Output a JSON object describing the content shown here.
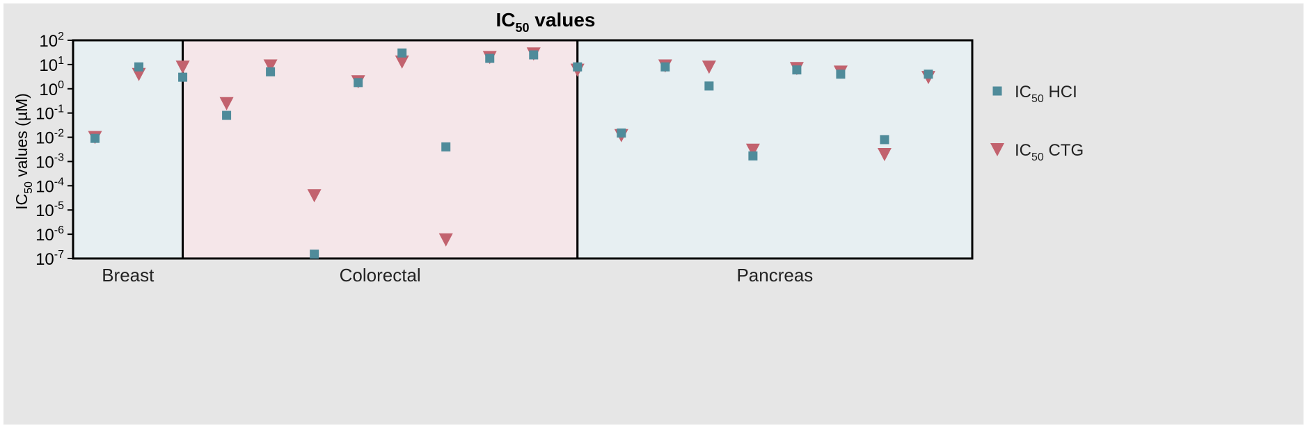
{
  "chart_data": {
    "type": "scatter",
    "title": "IC",
    "title_sub": "50",
    "title_rest": " values",
    "ylabel_pre": "IC",
    "ylabel_sub": "50",
    "ylabel_rest": " values (µM)",
    "yscale": "log",
    "ylim": [
      1e-07,
      100
    ],
    "yticks": [
      {
        "value": 100,
        "base": "10",
        "exp": "2"
      },
      {
        "value": 10,
        "base": "10",
        "exp": "1"
      },
      {
        "value": 1,
        "base": "10",
        "exp": "0"
      },
      {
        "value": 0.1,
        "base": "10",
        "exp": "-1"
      },
      {
        "value": 0.01,
        "base": "10",
        "exp": "-2"
      },
      {
        "value": 0.001,
        "base": "10",
        "exp": "-3"
      },
      {
        "value": 0.0001,
        "base": "10",
        "exp": "-4"
      },
      {
        "value": 1e-05,
        "base": "10",
        "exp": "-5"
      },
      {
        "value": 1e-06,
        "base": "10",
        "exp": "-6"
      },
      {
        "value": 1e-07,
        "base": "10",
        "exp": "-7"
      }
    ],
    "x_count": 21,
    "groups": [
      {
        "label": "Breast",
        "start": 1,
        "end": 2,
        "color": "#e7eff2"
      },
      {
        "label": "Colorectal",
        "start": 3,
        "end": 11,
        "color": "#f5e6e9"
      },
      {
        "label": "Pancreas",
        "start": 12,
        "end": 21,
        "color": "#e7eff2"
      }
    ],
    "series": [
      {
        "name_pre": "IC",
        "name_sub": "50",
        "name_rest": " HCI",
        "marker": "square",
        "color": "#4f8b9a",
        "points": [
          {
            "x": 1,
            "y": 0.009
          },
          {
            "x": 2,
            "y": 8
          },
          {
            "x": 3,
            "y": 3
          },
          {
            "x": 4,
            "y": 0.08
          },
          {
            "x": 5,
            "y": 5
          },
          {
            "x": 6,
            "y": 1.5e-07
          },
          {
            "x": 7,
            "y": 1.8
          },
          {
            "x": 8,
            "y": 30
          },
          {
            "x": 9,
            "y": 0.004
          },
          {
            "x": 10,
            "y": 18
          },
          {
            "x": 11,
            "y": 25
          },
          {
            "x": 12,
            "y": 8
          },
          {
            "x": 13,
            "y": 0.015
          },
          {
            "x": 14,
            "y": 8
          },
          {
            "x": 15,
            "y": 1.3
          },
          {
            "x": 16,
            "y": 0.0017
          },
          {
            "x": 17,
            "y": 6
          },
          {
            "x": 18,
            "y": 4
          },
          {
            "x": 19,
            "y": 0.008
          },
          {
            "x": 20,
            "y": 4
          }
        ]
      },
      {
        "name_pre": "IC",
        "name_sub": "50",
        "name_rest": " CTG",
        "marker": "triangle-down",
        "color": "#c2626e",
        "points": [
          {
            "x": 1,
            "y": 0.01
          },
          {
            "x": 2,
            "y": 4
          },
          {
            "x": 3,
            "y": 8
          },
          {
            "x": 4,
            "y": 0.25
          },
          {
            "x": 5,
            "y": 9
          },
          {
            "x": 6,
            "y": 4e-05
          },
          {
            "x": 7,
            "y": 2
          },
          {
            "x": 8,
            "y": 13
          },
          {
            "x": 9,
            "y": 6e-07
          },
          {
            "x": 10,
            "y": 20
          },
          {
            "x": 11,
            "y": 28
          },
          {
            "x": 12,
            "y": 6
          },
          {
            "x": 13,
            "y": 0.012
          },
          {
            "x": 14,
            "y": 9
          },
          {
            "x": 15,
            "y": 8
          },
          {
            "x": 16,
            "y": 0.003
          },
          {
            "x": 17,
            "y": 7
          },
          {
            "x": 18,
            "y": 5
          },
          {
            "x": 19,
            "y": 0.002
          },
          {
            "x": 20,
            "y": 3
          }
        ]
      }
    ],
    "legend": "right"
  }
}
